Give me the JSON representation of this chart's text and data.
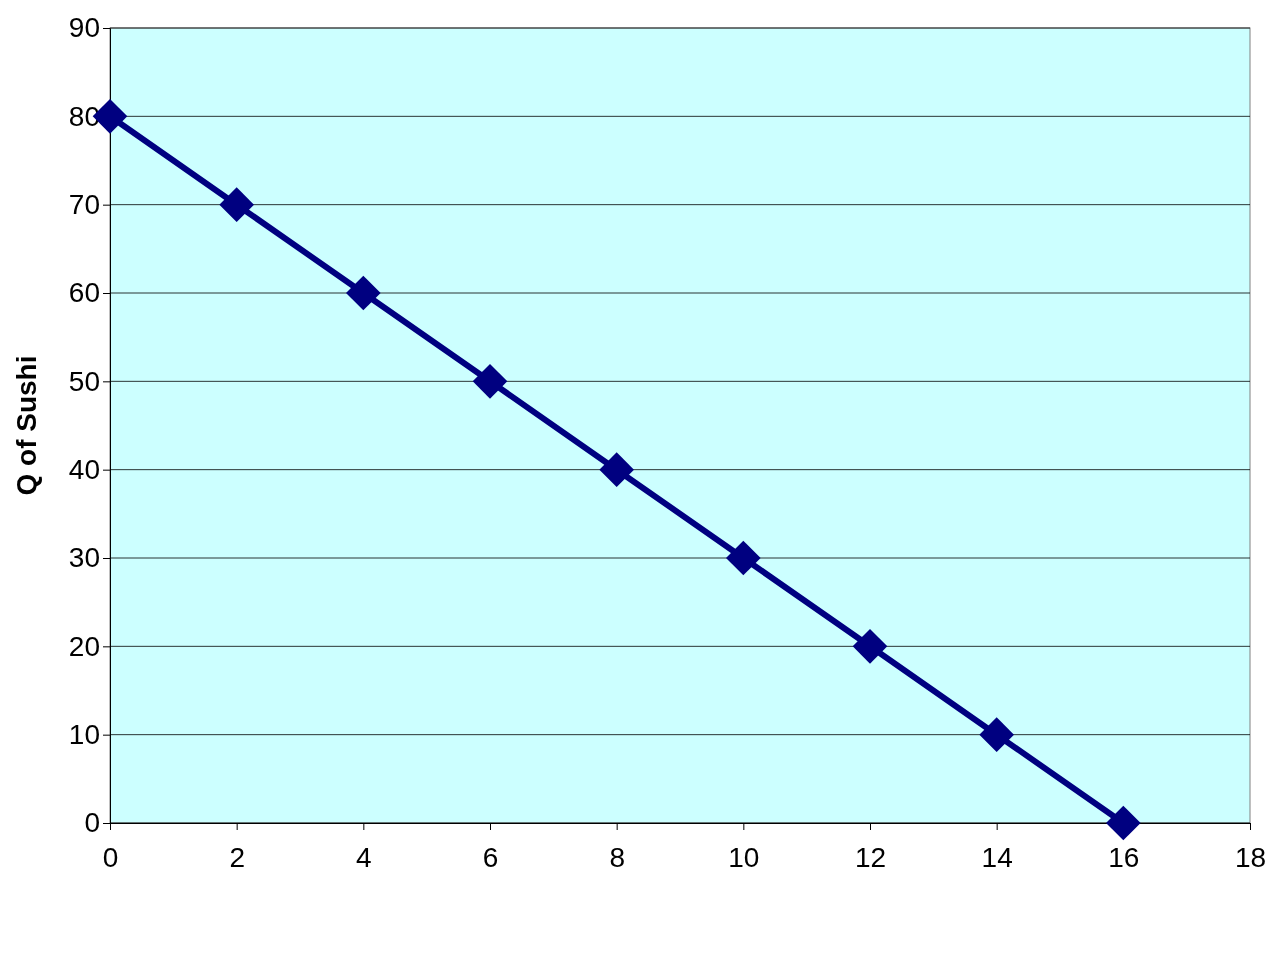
{
  "chart_data": {
    "type": "line",
    "ylabel": "Q of Sushi",
    "x": [
      0,
      2,
      4,
      6,
      8,
      10,
      12,
      14,
      16
    ],
    "series": [
      {
        "color": "#000080",
        "values": [
          80,
          70,
          60,
          50,
          40,
          30,
          20,
          10,
          0
        ]
      }
    ],
    "xlim": [
      0,
      18
    ],
    "xticks": [
      0,
      2,
      4,
      6,
      8,
      10,
      12,
      14,
      16,
      18
    ],
    "ylim": [
      0,
      90
    ],
    "yticks": [
      0,
      10,
      20,
      30,
      40,
      50,
      60,
      70,
      80,
      90
    ],
    "grid": "y",
    "marker": "diamond",
    "line_style": "solid"
  }
}
